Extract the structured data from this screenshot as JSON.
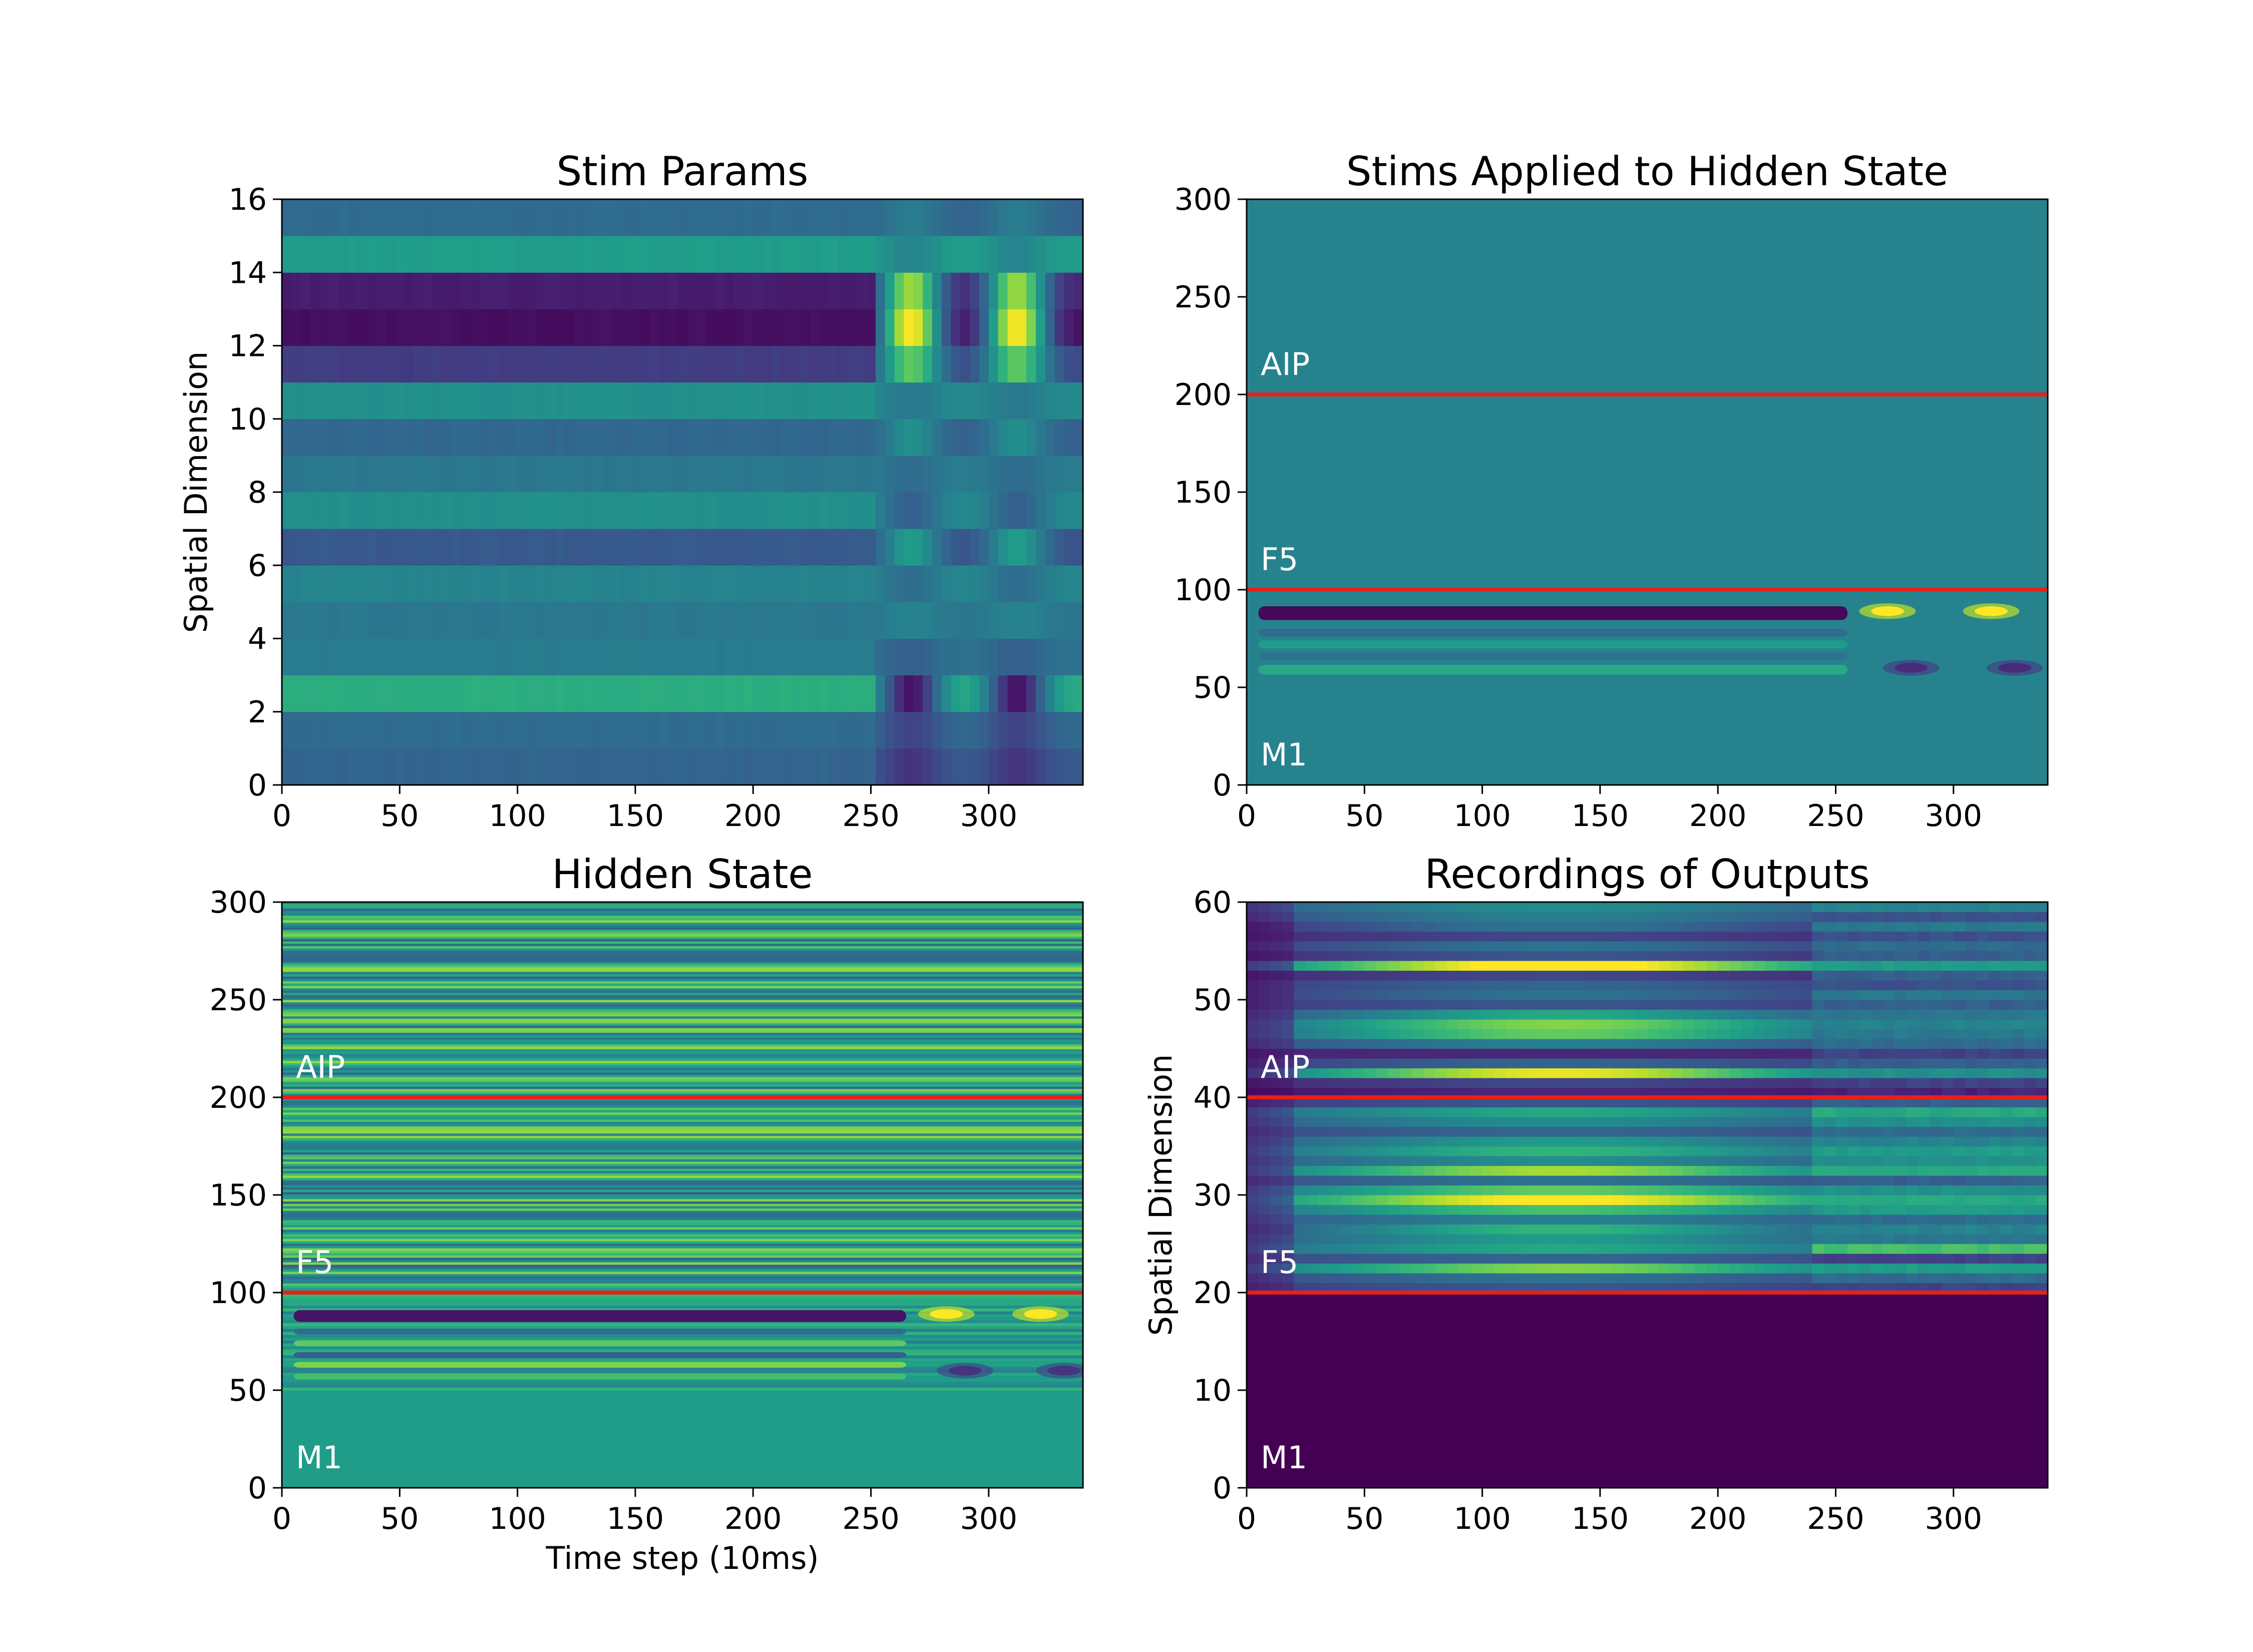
{
  "figure": {
    "background": "#ffffff"
  },
  "colormap": {
    "name": "viridis",
    "stops": [
      "#440154",
      "#482878",
      "#3e4989",
      "#31688e",
      "#26828e",
      "#1f9e89",
      "#35b779",
      "#6ece58",
      "#b5de2b",
      "#fde725"
    ]
  },
  "divider_color": "#e8201a",
  "chart_data": [
    {
      "type": "heatmap",
      "title": "Stim Params",
      "xlabel": "",
      "ylabel": "Spatial Dimension",
      "xlim": [
        0,
        340
      ],
      "ylim": [
        0,
        16
      ],
      "xticks": [
        0,
        50,
        100,
        150,
        200,
        250,
        300
      ],
      "yticks": [
        0,
        2,
        4,
        6,
        8,
        10,
        12,
        14,
        16
      ],
      "phases": [
        {
          "x_start": 0,
          "x_end": 252,
          "pattern": "constant"
        },
        {
          "x_start": 252,
          "x_end": 340,
          "pattern": "bursts",
          "burst_centers": [
            265,
            310
          ]
        }
      ],
      "rows": [
        {
          "y_start": 0,
          "y_end": 1,
          "base_value": 0.32,
          "burst_value": 0.15
        },
        {
          "y_start": 1,
          "y_end": 2,
          "base_value": 0.35,
          "burst_value": 0.2
        },
        {
          "y_start": 2,
          "y_end": 3,
          "base_value": 0.62,
          "burst_value": 0.05
        },
        {
          "y_start": 3,
          "y_end": 4,
          "base_value": 0.42,
          "burst_value": 0.3
        },
        {
          "y_start": 4,
          "y_end": 5,
          "base_value": 0.4,
          "burst_value": 0.45
        },
        {
          "y_start": 5,
          "y_end": 6,
          "base_value": 0.45,
          "burst_value": 0.35
        },
        {
          "y_start": 6,
          "y_end": 7,
          "base_value": 0.28,
          "burst_value": 0.55
        },
        {
          "y_start": 7,
          "y_end": 8,
          "base_value": 0.5,
          "burst_value": 0.3
        },
        {
          "y_start": 8,
          "y_end": 9,
          "base_value": 0.4,
          "burst_value": 0.35
        },
        {
          "y_start": 9,
          "y_end": 10,
          "base_value": 0.33,
          "burst_value": 0.5
        },
        {
          "y_start": 10,
          "y_end": 11,
          "base_value": 0.5,
          "burst_value": 0.4
        },
        {
          "y_start": 11,
          "y_end": 12,
          "base_value": 0.18,
          "burst_value": 0.75
        },
        {
          "y_start": 12,
          "y_end": 13,
          "base_value": 0.04,
          "burst_value": 1.0
        },
        {
          "y_start": 13,
          "y_end": 14,
          "base_value": 0.08,
          "burst_value": 0.85
        },
        {
          "y_start": 14,
          "y_end": 15,
          "base_value": 0.55,
          "burst_value": 0.45
        },
        {
          "y_start": 15,
          "y_end": 16,
          "base_value": 0.35,
          "burst_value": 0.42
        }
      ],
      "dividers": [],
      "region_labels": []
    },
    {
      "type": "heatmap",
      "title": "Stims Applied to Hidden State",
      "xlabel": "",
      "ylabel": "",
      "xlim": [
        0,
        340
      ],
      "ylim": [
        0,
        300
      ],
      "xticks": [
        0,
        50,
        100,
        150,
        200,
        250,
        300
      ],
      "yticks": [
        0,
        50,
        100,
        150,
        200,
        250,
        300
      ],
      "background_value": 0.45,
      "bands": [
        {
          "y": 88,
          "height": 7,
          "value": 0.02,
          "x_start": 5,
          "x_end": 255
        },
        {
          "y": 78,
          "height": 4,
          "value": 0.35,
          "x_start": 5,
          "x_end": 255
        },
        {
          "y": 72,
          "height": 4,
          "value": 0.55,
          "x_start": 5,
          "x_end": 255
        },
        {
          "y": 66,
          "height": 4,
          "value": 0.38,
          "x_start": 5,
          "x_end": 255
        },
        {
          "y": 59,
          "height": 5,
          "value": 0.6,
          "x_start": 5,
          "x_end": 255
        }
      ],
      "bursts": [
        {
          "x": 272,
          "y": 89,
          "value": 1.0
        },
        {
          "x": 316,
          "y": 89,
          "value": 1.0
        },
        {
          "x": 282,
          "y": 60,
          "value": 0.12
        },
        {
          "x": 326,
          "y": 60,
          "value": 0.12
        }
      ],
      "dividers": [
        100,
        200
      ],
      "region_labels": [
        {
          "text": "AIP",
          "y": 210
        },
        {
          "text": "F5",
          "y": 110
        },
        {
          "text": "M1",
          "y": 10
        }
      ]
    },
    {
      "type": "heatmap",
      "title": "Hidden State",
      "xlabel": "Time step (10ms)",
      "ylabel": "",
      "xlim": [
        0,
        340
      ],
      "ylim": [
        0,
        300
      ],
      "xticks": [
        0,
        50,
        100,
        150,
        200,
        250,
        300
      ],
      "yticks": [
        0,
        50,
        100,
        150,
        200,
        250,
        300
      ],
      "background_value": 0.55,
      "bands": [
        {
          "y": 88,
          "height": 6,
          "value": 0.05,
          "x_start": 5,
          "x_end": 265
        },
        {
          "y": 80,
          "height": 3,
          "value": 0.35,
          "x_start": 5,
          "x_end": 265
        },
        {
          "y": 74,
          "height": 3,
          "value": 0.75,
          "x_start": 5,
          "x_end": 265
        },
        {
          "y": 68,
          "height": 3,
          "value": 0.3,
          "x_start": 5,
          "x_end": 265
        },
        {
          "y": 63,
          "height": 3,
          "value": 0.8,
          "x_start": 5,
          "x_end": 265
        },
        {
          "y": 57,
          "height": 3,
          "value": 0.7,
          "x_start": 5,
          "x_end": 265
        }
      ],
      "bursts": [
        {
          "x": 282,
          "y": 89,
          "value": 1.0
        },
        {
          "x": 322,
          "y": 89,
          "value": 1.0
        },
        {
          "x": 290,
          "y": 60,
          "value": 0.15
        },
        {
          "x": 332,
          "y": 60,
          "value": 0.15
        }
      ],
      "texture": {
        "y_start": 100,
        "y_end": 300,
        "noise": 0.28
      },
      "dividers": [
        100,
        200
      ],
      "region_labels": [
        {
          "text": "AIP",
          "y": 210
        },
        {
          "text": "F5",
          "y": 110
        },
        {
          "text": "M1",
          "y": 10
        }
      ]
    },
    {
      "type": "heatmap",
      "title": "Recordings of Outputs",
      "xlabel": "",
      "ylabel": "Spatial Dimension",
      "xlim": [
        0,
        340
      ],
      "ylim": [
        0,
        60
      ],
      "xticks": [
        0,
        50,
        100,
        150,
        200,
        250,
        300
      ],
      "yticks": [
        0,
        10,
        20,
        30,
        40,
        50,
        60
      ],
      "below_value": 0.0,
      "below_y": 20,
      "rows": [
        {
          "y": 20.5,
          "early": 0.15,
          "mid": 0.25,
          "late": 0.2
        },
        {
          "y": 21.5,
          "early": 0.2,
          "mid": 0.35,
          "late": 0.35
        },
        {
          "y": 22.5,
          "early": 0.3,
          "mid": 0.75,
          "late": 0.55
        },
        {
          "y": 23.5,
          "early": 0.2,
          "mid": 0.3,
          "late": 0.2
        },
        {
          "y": 24.5,
          "early": 0.3,
          "mid": 0.55,
          "late": 0.7
        },
        {
          "y": 25.5,
          "early": 0.25,
          "mid": 0.5,
          "late": 0.4
        },
        {
          "y": 26.5,
          "early": 0.2,
          "mid": 0.6,
          "late": 0.45
        },
        {
          "y": 27.5,
          "early": 0.25,
          "mid": 0.4,
          "late": 0.35
        },
        {
          "y": 28.5,
          "early": 0.3,
          "mid": 0.65,
          "late": 0.55
        },
        {
          "y": 29.5,
          "early": 0.35,
          "mid": 0.95,
          "late": 0.6
        },
        {
          "y": 30.5,
          "early": 0.3,
          "mid": 0.7,
          "late": 0.5
        },
        {
          "y": 31.5,
          "early": 0.2,
          "mid": 0.35,
          "late": 0.3
        },
        {
          "y": 32.5,
          "early": 0.3,
          "mid": 0.8,
          "late": 0.6
        },
        {
          "y": 33.5,
          "early": 0.25,
          "mid": 0.45,
          "late": 0.5
        },
        {
          "y": 34.5,
          "early": 0.3,
          "mid": 0.6,
          "late": 0.55
        },
        {
          "y": 35.5,
          "early": 0.25,
          "mid": 0.5,
          "late": 0.45
        },
        {
          "y": 36.5,
          "early": 0.2,
          "mid": 0.3,
          "late": 0.35
        },
        {
          "y": 37.5,
          "early": 0.25,
          "mid": 0.45,
          "late": 0.5
        },
        {
          "y": 38.5,
          "early": 0.3,
          "mid": 0.55,
          "late": 0.6
        },
        {
          "y": 39.5,
          "early": 0.15,
          "mid": 0.25,
          "late": 0.3
        },
        {
          "y": 40.5,
          "early": 0.05,
          "mid": 0.1,
          "late": 0.1
        },
        {
          "y": 41.5,
          "early": 0.1,
          "mid": 0.2,
          "late": 0.2
        },
        {
          "y": 42.5,
          "early": 0.25,
          "mid": 0.9,
          "late": 0.5
        },
        {
          "y": 43.5,
          "early": 0.15,
          "mid": 0.3,
          "late": 0.3
        },
        {
          "y": 44.5,
          "early": 0.1,
          "mid": 0.1,
          "late": 0.2
        },
        {
          "y": 45.5,
          "early": 0.2,
          "mid": 0.4,
          "late": 0.35
        },
        {
          "y": 46.5,
          "early": 0.25,
          "mid": 0.7,
          "late": 0.4
        },
        {
          "y": 47.5,
          "early": 0.25,
          "mid": 0.75,
          "late": 0.45
        },
        {
          "y": 48.5,
          "early": 0.2,
          "mid": 0.55,
          "late": 0.4
        },
        {
          "y": 49.5,
          "early": 0.15,
          "mid": 0.25,
          "late": 0.3
        },
        {
          "y": 50.5,
          "early": 0.15,
          "mid": 0.35,
          "late": 0.4
        },
        {
          "y": 51.5,
          "early": 0.15,
          "mid": 0.3,
          "late": 0.25
        },
        {
          "y": 52.5,
          "early": 0.1,
          "mid": 0.2,
          "late": 0.3
        },
        {
          "y": 53.5,
          "early": 0.3,
          "mid": 1.0,
          "late": 0.55
        },
        {
          "y": 54.5,
          "early": 0.1,
          "mid": 0.25,
          "late": 0.3
        },
        {
          "y": 55.5,
          "early": 0.15,
          "mid": 0.35,
          "late": 0.35
        },
        {
          "y": 56.5,
          "early": 0.1,
          "mid": 0.2,
          "late": 0.25
        },
        {
          "y": 57.5,
          "early": 0.12,
          "mid": 0.35,
          "late": 0.4
        },
        {
          "y": 58.5,
          "early": 0.2,
          "mid": 0.4,
          "late": 0.25
        },
        {
          "y": 59.5,
          "early": 0.25,
          "mid": 0.45,
          "late": 0.45
        }
      ],
      "dividers": [
        20,
        40
      ],
      "region_labels": [
        {
          "text": "AIP",
          "y": 42
        },
        {
          "text": "F5",
          "y": 22
        },
        {
          "text": "M1",
          "y": 2
        }
      ]
    }
  ]
}
